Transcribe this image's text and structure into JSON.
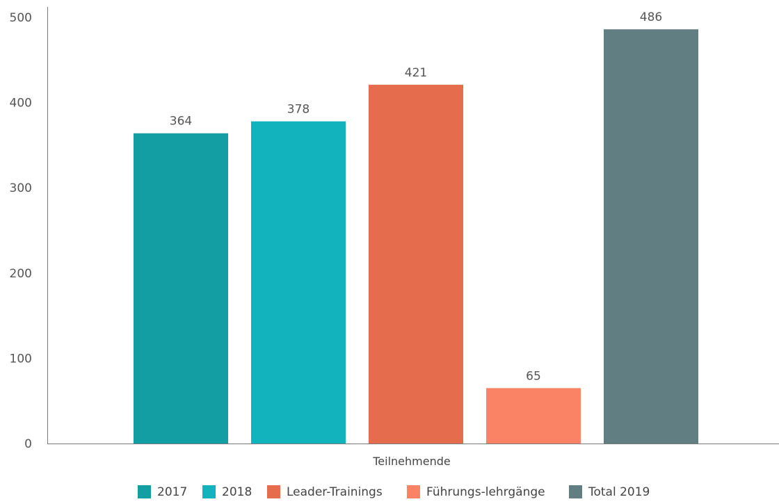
{
  "chart_data": {
    "type": "bar",
    "categories": [
      "Teilnehmende"
    ],
    "xlabel": "Teilnehmende",
    "ylabel": "",
    "ylim": [
      0,
      500
    ],
    "yticks": [
      0,
      100,
      200,
      300,
      400,
      500
    ],
    "grid": false,
    "legend_position": "bottom",
    "series": [
      {
        "name": "2017",
        "values": [
          364
        ],
        "color": "#139ea3"
      },
      {
        "name": "2018",
        "values": [
          378
        ],
        "color": "#12b3bd"
      },
      {
        "name": "Leader-Trainings",
        "values": [
          421
        ],
        "color": "#e56c4c"
      },
      {
        "name": "Führungs-lehrgänge",
        "values": [
          65
        ],
        "color": "#fb8365"
      },
      {
        "name": "Total 2019",
        "values": [
          486
        ],
        "color": "#617f82"
      }
    ]
  }
}
